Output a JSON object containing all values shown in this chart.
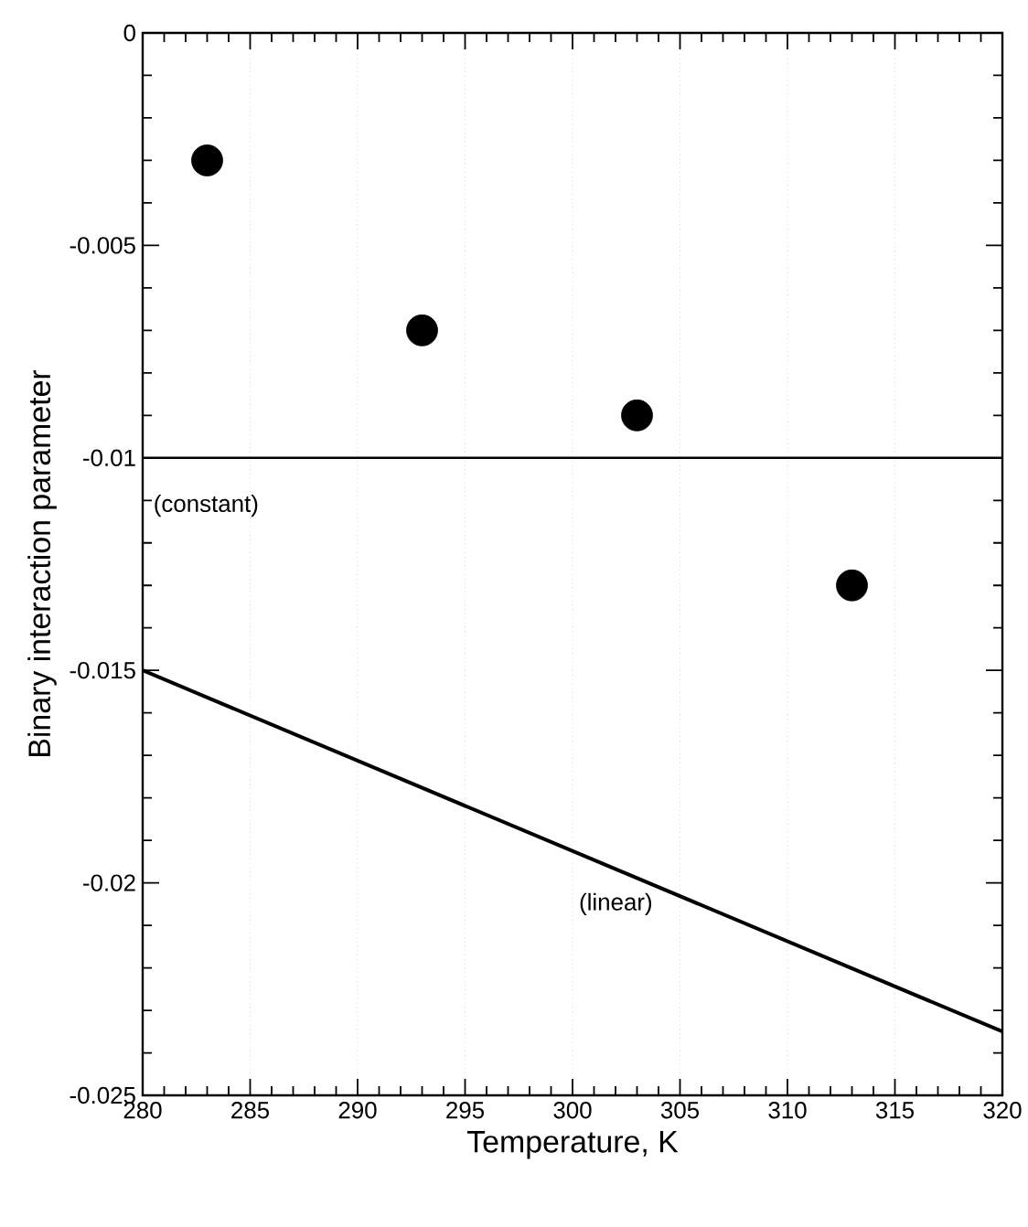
{
  "chart_data": {
    "type": "scatter",
    "xlabel": "Temperature, K",
    "ylabel": "Binary interaction parameter",
    "series": [
      {
        "color": "#000000",
        "x": [
          283,
          293,
          303,
          313
        ],
        "values": [
          -0.003,
          -0.007,
          -0.009,
          -0.013
        ]
      },
      {
        "type": "line",
        "color": "#000000",
        "x": [
          280,
          320
        ],
        "values": [
          -0.01,
          -0.01
        ]
      },
      {
        "type": "line",
        "color": "#000000",
        "x": [
          280,
          320
        ],
        "values": [
          -0.015,
          -0.0235
        ]
      }
    ],
    "annotations": [
      "(constant)",
      "(linear)"
    ],
    "grid": "x",
    "xlim": [
      280,
      320
    ],
    "xticks": [
      280,
      285,
      290,
      295,
      300,
      305,
      310,
      315,
      320
    ],
    "ylim": [
      -0.025,
      0
    ],
    "yticks": [
      -0.025,
      -0.02,
      -0.015,
      -0.01,
      -0.005,
      0
    ]
  }
}
